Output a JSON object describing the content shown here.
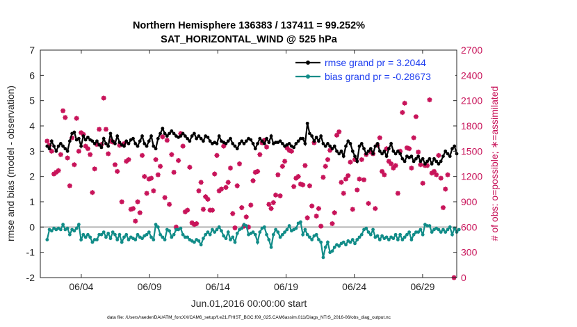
{
  "chart_data": {
    "type": "line",
    "title_line1": "Northern Hemisphere 136383 / 137411 = 99.252%",
    "title_line2": "SAT_HORIZONTAL_WIND @ 525 hPa",
    "xlabel": "Jun.01,2016 00:00:00 start",
    "ylabel_left": "rmse and bias (model - observation)",
    "ylabel_right": "# of obs: o=possible; ∗=assimilated",
    "footer": "data file: /Users/raeder/DAI/ATM_forcXX/CAM6_setup/f.e21.FHIST_BGC.f09_025.CAM6assim.011/Diags_NTrS_2016-06/obs_diag_output.nc",
    "xlim": [
      1,
      31.5
    ],
    "ylim_left": [
      -2,
      7
    ],
    "ylim_right": [
      0,
      2700
    ],
    "x_ticks": [
      {
        "x": 4,
        "label": "06/04"
      },
      {
        "x": 9,
        "label": "06/09"
      },
      {
        "x": 14,
        "label": "06/14"
      },
      {
        "x": 19,
        "label": "06/19"
      },
      {
        "x": 24,
        "label": "06/24"
      },
      {
        "x": 29,
        "label": "06/29"
      }
    ],
    "y_ticks_left": [
      -2,
      -1,
      0,
      1,
      2,
      3,
      4,
      5,
      6,
      7
    ],
    "y_ticks_right": [
      0,
      300,
      600,
      900,
      1200,
      1500,
      1800,
      2100,
      2400,
      2700
    ],
    "zero_line": 0,
    "legend": [
      {
        "label": "rmse grand pr = 3.2044",
        "color": "#000000",
        "series": "rmse"
      },
      {
        "label": "bias grand pr = -0.28673",
        "color": "#118c88",
        "series": "bias"
      }
    ],
    "legend_position": "top-right",
    "colors": {
      "rmse": "#000000",
      "bias": "#118c88",
      "obs": "#c8145a",
      "zero": "#b4b4b4",
      "right_axis": "#c8145a"
    },
    "series": [
      {
        "name": "rmse",
        "axis": "left",
        "values": [
          3.2,
          3.1,
          3.4,
          3.2,
          3.0,
          3.2,
          3.3,
          3.2,
          3.1,
          3.0,
          3.4,
          3.7,
          3.75,
          3.45,
          3.5,
          3.2,
          3.6,
          3.45,
          3.55,
          3.45,
          3.4,
          3.3,
          3.4,
          3.25,
          3.15,
          3.5,
          3.3,
          3.2,
          3.7,
          3.4,
          3.3,
          3.6,
          3.35,
          3.25,
          3.2,
          3.4,
          3.3,
          3.45,
          3.5,
          3.3,
          3.2,
          3.4,
          3.6,
          3.3,
          3.2,
          3.4,
          3.6,
          3.2,
          3.1,
          3.5,
          3.7,
          3.9,
          3.7,
          3.6,
          3.7,
          3.8,
          3.7,
          3.6,
          3.55,
          3.6,
          3.7,
          3.6,
          3.5,
          3.4,
          3.6,
          3.7,
          3.5,
          3.6,
          3.5,
          3.4,
          3.6,
          3.55,
          3.4,
          3.3,
          3.35,
          3.3,
          3.6,
          3.4,
          3.35,
          3.3,
          3.4,
          3.5,
          3.3,
          3.2,
          3.1,
          3.3,
          3.4,
          3.3,
          3.4,
          3.5,
          3.45,
          3.3,
          3.1,
          3.3,
          3.5,
          3.4,
          3.3,
          3.5,
          3.35,
          3.6,
          3.3,
          3.35,
          3.35,
          3.4,
          3.3,
          3.2,
          3.25,
          3.3,
          3.2,
          3.15,
          3.3,
          3.4,
          3.5,
          3.5,
          3.3,
          4.1,
          3.7,
          3.6,
          3.4,
          3.55,
          3.4,
          3.6,
          3.3,
          3.2,
          3.3,
          3.2,
          3.1,
          3.2,
          3.0,
          2.9,
          3.0,
          2.8,
          3.2,
          3.4,
          3.3,
          3.0,
          2.8,
          2.6,
          3.2,
          3.3,
          3.1,
          2.9,
          3.0,
          3.1,
          2.9,
          3.2,
          3.3,
          3.0,
          2.9,
          3.0,
          2.8,
          3.1,
          3.3,
          3.0,
          2.9,
          3.0,
          2.9,
          2.7,
          2.6,
          2.8,
          2.75,
          2.8,
          2.6,
          2.7,
          2.8,
          2.6,
          2.7,
          2.5,
          2.6,
          2.7,
          2.5,
          2.7,
          2.6,
          2.5,
          2.6,
          2.8,
          3.0,
          2.9,
          2.8,
          3.1,
          3.2,
          2.9
        ]
      },
      {
        "name": "bias",
        "axis": "left",
        "values": [
          -0.5,
          -0.1,
          -0.15,
          -0.05,
          -0.1,
          -0.05,
          -0.1,
          0.1,
          -0.1,
          -0.05,
          -0.3,
          -0.1,
          -0.15,
          -0.05,
          0.1,
          -0.5,
          -0.3,
          -0.4,
          -0.3,
          -0.4,
          -0.6,
          -0.5,
          -0.5,
          -0.3,
          -0.3,
          -0.2,
          -0.4,
          -0.25,
          -0.45,
          -0.2,
          -0.3,
          -0.5,
          -0.3,
          -0.6,
          -0.4,
          -0.3,
          -0.5,
          -0.4,
          -0.45,
          -0.5,
          -0.3,
          -0.4,
          -0.45,
          -0.35,
          -0.3,
          -0.2,
          -0.4,
          -0.5,
          0.1,
          0.0,
          -0.3,
          -0.4,
          -0.5,
          -0.1,
          -0.15,
          -0.4,
          -0.3,
          -0.1,
          -0.1,
          -0.05,
          -0.3,
          -0.4,
          -0.4,
          -0.5,
          -0.55,
          -0.6,
          -0.5,
          -0.55,
          -0.7,
          -0.45,
          -0.3,
          -0.2,
          -0.3,
          -0.1,
          -0.2,
          -0.1,
          0.0,
          -0.15,
          -0.35,
          -0.45,
          -0.2,
          -0.5,
          -0.4,
          -0.6,
          -0.25,
          -0.1,
          -0.05,
          0.1,
          0.05,
          -0.3,
          -0.25,
          -0.2,
          -0.3,
          -0.6,
          -0.2,
          -0.05,
          0.0,
          -0.3,
          -0.5,
          -0.8,
          -0.3,
          -0.1,
          -0.2,
          -0.4,
          -0.3,
          -0.2,
          -0.1,
          0.05,
          -0.15,
          -0.1,
          -0.05,
          0.15,
          0.2,
          -0.3,
          -0.1,
          -0.3,
          -0.4,
          -0.5,
          -0.35,
          -0.3,
          -0.5,
          -0.6,
          -1.2,
          -0.8,
          -0.6,
          -1.0,
          -0.95,
          -0.8,
          -0.7,
          -0.75,
          -0.65,
          -0.6,
          -0.7,
          -0.55,
          -0.6,
          -0.5,
          -0.65,
          -0.5,
          -0.4,
          -0.3,
          -0.1,
          -0.05,
          -0.2,
          -0.3,
          -0.1,
          -0.4,
          -0.35,
          -0.5,
          -0.35,
          -0.45,
          -0.4,
          -0.5,
          -0.4,
          -0.45,
          -0.3,
          -0.5,
          -0.3,
          -0.5,
          -0.4,
          -0.3,
          -0.2,
          -0.5,
          -0.3,
          -0.2,
          -0.2,
          -0.1,
          -0.3,
          0.1,
          0.05,
          0.05,
          -0.2,
          -0.1,
          -0.05,
          -0.1,
          -0.2,
          -0.1,
          -0.2,
          -0.1,
          0.0,
          -0.3,
          -0.05,
          -0.2,
          -0.1
        ]
      },
      {
        "name": "obs",
        "axis": "right",
        "values": [
          1620,
          1570,
          1500,
          1230,
          1250,
          1270,
          1460,
          1980,
          1900,
          1420,
          1090,
          1660,
          1340,
          1890,
          1500,
          1720,
          1700,
          1560,
          1530,
          1460,
          1010,
          1290,
          1580,
          1760,
          1580,
          2130,
          1760,
          1470,
          1620,
          1610,
          1340,
          1260,
          1570,
          900,
          1590,
          1380,
          1400,
          810,
          820,
          670,
          900,
          770,
          1450,
          1200,
          1000,
          1170,
          1180,
          1030,
          1400,
          1220,
          1320,
          1670,
          950,
          1630,
          870,
          1460,
          1250,
          600,
          1390,
          1710,
          1560,
          780,
          800,
          1310,
          650,
          630,
          640,
          1030,
          1130,
          810,
          960,
          930,
          800,
          800,
          1230,
          1450,
          1030,
          1050,
          1560,
          1070,
          1130,
          1300,
          760,
          590,
          1090,
          1350,
          830,
          610,
          720,
          600,
          860,
          1150,
          1250,
          1260,
          1460,
          1600,
          1630,
          1550,
          870,
          820,
          890,
          980,
          1220,
          970,
          1320,
          1380,
          1540,
          1510,
          1500,
          1080,
          1180,
          1200,
          1110,
          1100,
          1330,
          710,
          1090,
          850,
          1600,
          730,
          820,
          610,
          1190,
          1320,
          1400,
          1510,
          640,
          770,
          1690,
          1730,
          1130,
          1000,
          1170,
          1210,
          1370,
          810,
          1400,
          1040,
          1170,
          1400,
          1160,
          1460,
          880,
          1490,
          1470,
          820,
          1570,
          1660,
          1260,
          1220,
          1530,
          1380,
          1350,
          1300,
          1330,
          1000,
          1500,
          1960,
          2070,
          1540,
          1530,
          1300,
          1660,
          1910,
          1490,
          1340,
          1120,
          1330,
          1330,
          2110,
          1240,
          1260,
          1220,
          1450,
          1180,
          830,
          1050,
          1220
        ]
      }
    ],
    "obs_extra_points": [
      {
        "x": 31.3,
        "y": 0
      }
    ]
  }
}
